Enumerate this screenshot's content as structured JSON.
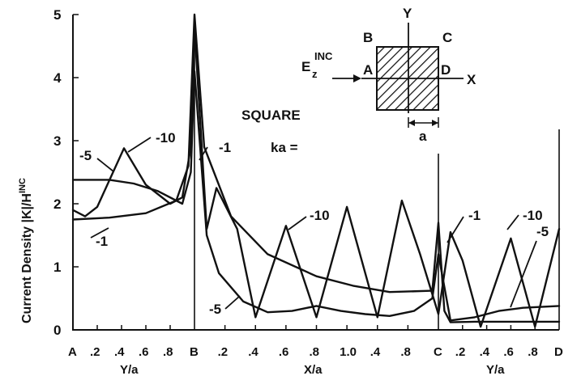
{
  "chart_data": {
    "type": "line",
    "ylabel": "Current Density |K|/H^INC",
    "ylim": [
      0,
      5
    ],
    "yticks": [
      "0",
      "1",
      "2",
      "3",
      "4",
      "5"
    ],
    "segments": [
      {
        "xlabel": "Y/a",
        "start": "A",
        "ticks": [
          ".2",
          ".4",
          ".6",
          ".8"
        ]
      },
      {
        "xlabel": "X/a",
        "start": "B",
        "ticks": [
          ".2",
          ".4",
          ".6",
          ".8",
          "1.0",
          ".4",
          ".8"
        ]
      },
      {
        "xlabel": "Y/a",
        "start": "C",
        "ticks": [
          ".2",
          ".4",
          ".6",
          ".8"
        ],
        "end": "D"
      }
    ],
    "annotation": {
      "title": "SQUARE",
      "param": "ka ="
    },
    "inset": {
      "y_axis": "Y",
      "x_axis": "X",
      "corners": [
        "B",
        "C",
        "A",
        "D"
      ],
      "incident": "E",
      "incident_sub": "z",
      "incident_sup": "INC",
      "dim": "a"
    },
    "series": [
      {
        "name": "1",
        "x": [
          0,
          0.3,
          0.6,
          0.85,
          0.95,
          1.0,
          1.08,
          1.3,
          1.6,
          2.0,
          2.3,
          2.6,
          2.95,
          3.0,
          3.05,
          3.1,
          3.3,
          3.6,
          4.0
        ],
        "y": [
          1.75,
          1.78,
          1.85,
          2.05,
          2.6,
          5.0,
          2.9,
          1.8,
          1.2,
          0.85,
          0.7,
          0.6,
          0.62,
          1.7,
          0.3,
          0.12,
          0.13,
          0.13,
          0.13
        ]
      },
      {
        "name": "5",
        "x": [
          0,
          0.3,
          0.5,
          0.7,
          0.9,
          0.97,
          1.0,
          1.1,
          1.2,
          1.4,
          1.6,
          1.8,
          2.0,
          2.2,
          2.4,
          2.6,
          2.8,
          2.95,
          3.0,
          3.1,
          3.3,
          3.5,
          3.7,
          4.0
        ],
        "y": [
          2.38,
          2.38,
          2.32,
          2.2,
          2.0,
          2.5,
          4.1,
          1.5,
          0.9,
          0.45,
          0.28,
          0.3,
          0.38,
          0.3,
          0.25,
          0.22,
          0.3,
          0.5,
          1.2,
          0.15,
          0.2,
          0.3,
          0.35,
          0.38
        ]
      },
      {
        "name": "10",
        "x": [
          0,
          0.1,
          0.2,
          0.42,
          0.6,
          0.8,
          0.9,
          0.97,
          1.0,
          1.1,
          1.18,
          1.35,
          1.5,
          1.75,
          2.0,
          2.25,
          2.5,
          2.7,
          2.85,
          3.0,
          3.1,
          3.2,
          3.35,
          3.6,
          3.8,
          4.0
        ],
        "y": [
          1.9,
          1.8,
          1.95,
          2.88,
          2.3,
          2.0,
          2.1,
          2.9,
          4.8,
          1.6,
          2.25,
          1.6,
          0.2,
          1.65,
          0.2,
          1.95,
          0.2,
          2.05,
          1.2,
          0.25,
          1.55,
          1.1,
          0.05,
          1.45,
          0.05,
          1.6
        ]
      }
    ]
  }
}
